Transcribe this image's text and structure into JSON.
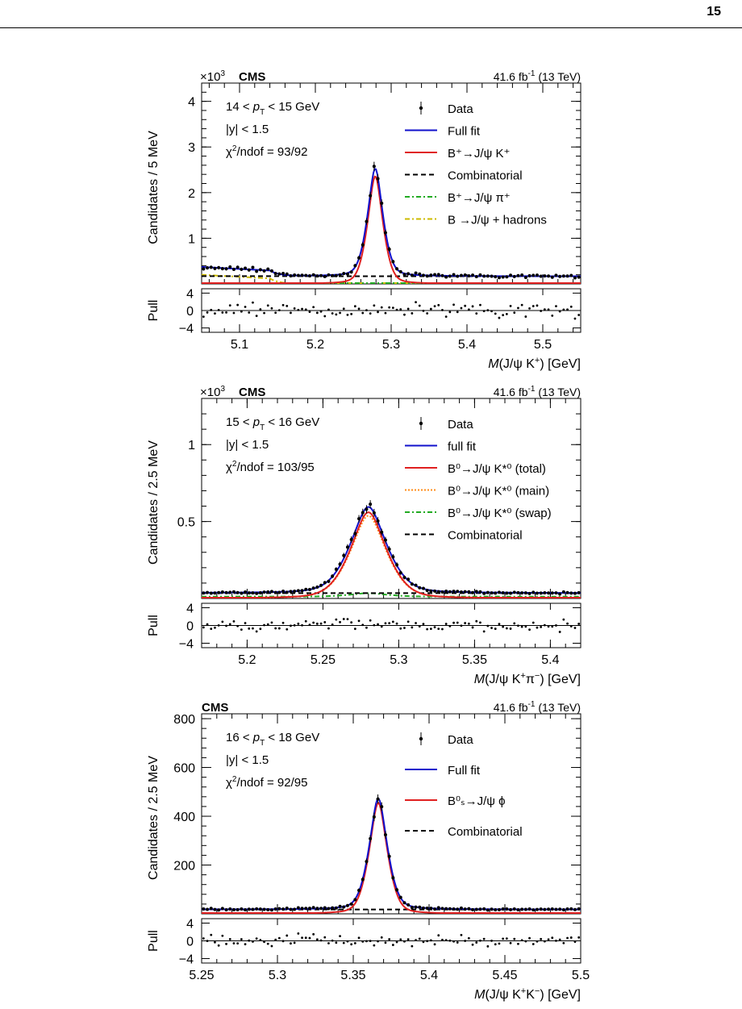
{
  "page": {
    "number": "15"
  },
  "chart_data": [
    {
      "type": "line",
      "cms_label": "CMS",
      "exponent_label": "×10",
      "exponent_power": "3",
      "lumi_label": "41.6 fb",
      "lumi_power": "-1",
      "energy_label": " (13 TeV)",
      "ylabel": "Candidates / 5 MeV",
      "xlabel": {
        "m": "M",
        "rest": "(J/ψ K",
        "sup": "+",
        "tail": ") [GeV]"
      },
      "xlim": [
        5.05,
        5.55
      ],
      "ylim": [
        0,
        4.4
      ],
      "xticks": [
        "5.1",
        "5.2",
        "5.3",
        "5.4",
        "5.5"
      ],
      "xtick_values": [
        5.1,
        5.2,
        5.3,
        5.4,
        5.5
      ],
      "yticks": [
        "1",
        "2",
        "3",
        "4"
      ],
      "ytick_values": [
        1,
        2,
        3,
        4
      ],
      "pull_ticks": [
        "4",
        "0",
        "−4"
      ],
      "pull_label": "Pull",
      "info": {
        "line1": {
          "pre": "14 < ",
          "p": "p",
          "sub": "T",
          "post": " < 15 GeV"
        },
        "line2": "|y| < 1.5",
        "line3": {
          "chi": "χ",
          "sup": "2",
          "post": "/ndof = 93/92"
        }
      },
      "legend": [
        {
          "label": "Data",
          "style": "data",
          "color": "#000000"
        },
        {
          "label": "Full fit",
          "style": "solid",
          "color": "#1010cc"
        },
        {
          "label": "B⁺→J/ψ K⁺",
          "style": "solid",
          "color": "#e02020"
        },
        {
          "label": "Combinatorial",
          "style": "dashed",
          "color": "#000000"
        },
        {
          "label": "B⁺→J/ψ π⁺",
          "style": "dashdot",
          "color": "#22aa22"
        },
        {
          "label": "B →J/ψ + hadrons",
          "style": "dashdot",
          "color": "#ccbb00"
        }
      ],
      "signal": {
        "mean": 5.279,
        "width": 0.0115,
        "peak": 2.36
      },
      "background": {
        "level": 0.17,
        "slope": -0.02
      },
      "shoulder": {
        "level": 0.2,
        "end": 5.14
      },
      "data_points": 100
    },
    {
      "type": "line",
      "cms_label": "CMS",
      "exponent_label": "×10",
      "exponent_power": "3",
      "lumi_label": "41.6 fb",
      "lumi_power": "-1",
      "energy_label": " (13 TeV)",
      "ylabel": "Candidates / 2.5 MeV",
      "xlabel": {
        "m": "M",
        "rest": "(J/ψ K",
        "sup": "+",
        "mid": "π",
        "sup2": "−",
        "tail": ") [GeV]"
      },
      "xlim": [
        5.17,
        5.42
      ],
      "ylim": [
        0,
        1.3
      ],
      "xticks": [
        "5.2",
        "5.25",
        "5.3",
        "5.35",
        "5.4"
      ],
      "xtick_values": [
        5.2,
        5.25,
        5.3,
        5.35,
        5.4
      ],
      "yticks": [
        "0.5",
        "1"
      ],
      "ytick_values": [
        0.5,
        1.0
      ],
      "pull_ticks": [
        "4",
        "0",
        "−4"
      ],
      "pull_label": "Pull",
      "info": {
        "line1": {
          "pre": "15 < ",
          "p": "p",
          "sub": "T",
          "post": " < 16 GeV"
        },
        "line2": "|y| < 1.5",
        "line3": {
          "chi": "χ",
          "sup": "2",
          "post": "/ndof = 103/95"
        }
      },
      "legend": [
        {
          "label": "Data",
          "style": "data",
          "color": "#000000"
        },
        {
          "label": "full fit",
          "style": "solid",
          "color": "#1010cc"
        },
        {
          "label": "B⁰→J/ψ K*⁰ (total)",
          "style": "solid",
          "color": "#e02020"
        },
        {
          "label": "B⁰→J/ψ K*⁰ (main)",
          "style": "dotted",
          "color": "#ff8c1a"
        },
        {
          "label": "B⁰→J/ψ K*⁰ (swap)",
          "style": "dashdot",
          "color": "#22aa22"
        },
        {
          "label": "Combinatorial",
          "style": "dashed",
          "color": "#000000"
        }
      ],
      "signal": {
        "mean": 5.28,
        "width": 0.0135,
        "peak": 0.56
      },
      "background": {
        "level": 0.035,
        "slope": -0.02
      },
      "data_points": 100
    },
    {
      "type": "line",
      "cms_label": "CMS",
      "lumi_label": "41.6 fb",
      "lumi_power": "-1",
      "energy_label": " (13 TeV)",
      "ylabel": "Candidates / 2.5 MeV",
      "xlabel": {
        "m": "M",
        "rest": "(J/ψ K",
        "sup": "+",
        "mid": "K",
        "sup2": "−",
        "tail": ") [GeV]"
      },
      "xlim": [
        5.25,
        5.5
      ],
      "ylim": [
        0,
        820
      ],
      "xticks": [
        "5.25",
        "5.3",
        "5.35",
        "5.4",
        "5.45",
        "5.5"
      ],
      "xtick_values": [
        5.25,
        5.3,
        5.35,
        5.4,
        5.45,
        5.5
      ],
      "yticks": [
        "200",
        "400",
        "600",
        "800"
      ],
      "ytick_values": [
        200,
        400,
        600,
        800
      ],
      "pull_ticks": [
        "4",
        "0",
        "−4"
      ],
      "pull_label": "Pull",
      "info": {
        "line1": {
          "pre": "16 < ",
          "p": "p",
          "sub": "T",
          "post": " < 18 GeV"
        },
        "line2": "|y| < 1.5",
        "line3": {
          "chi": "χ",
          "sup": "2",
          "post": "/ndof = 92/95"
        }
      },
      "legend": [
        {
          "label": "Data",
          "style": "data",
          "color": "#000000"
        },
        {
          "label": "Full fit",
          "style": "solid",
          "color": "#1010cc"
        },
        {
          "label": "B⁰ₛ→J/ψ ϕ",
          "style": "solid",
          "color": "#e02020"
        },
        {
          "label": "Combinatorial",
          "style": "dashed",
          "color": "#000000"
        }
      ],
      "signal": {
        "mean": 5.3665,
        "width": 0.0068,
        "peak": 455
      },
      "background": {
        "level": 18,
        "slope": -0.02
      },
      "data_points": 100
    }
  ]
}
